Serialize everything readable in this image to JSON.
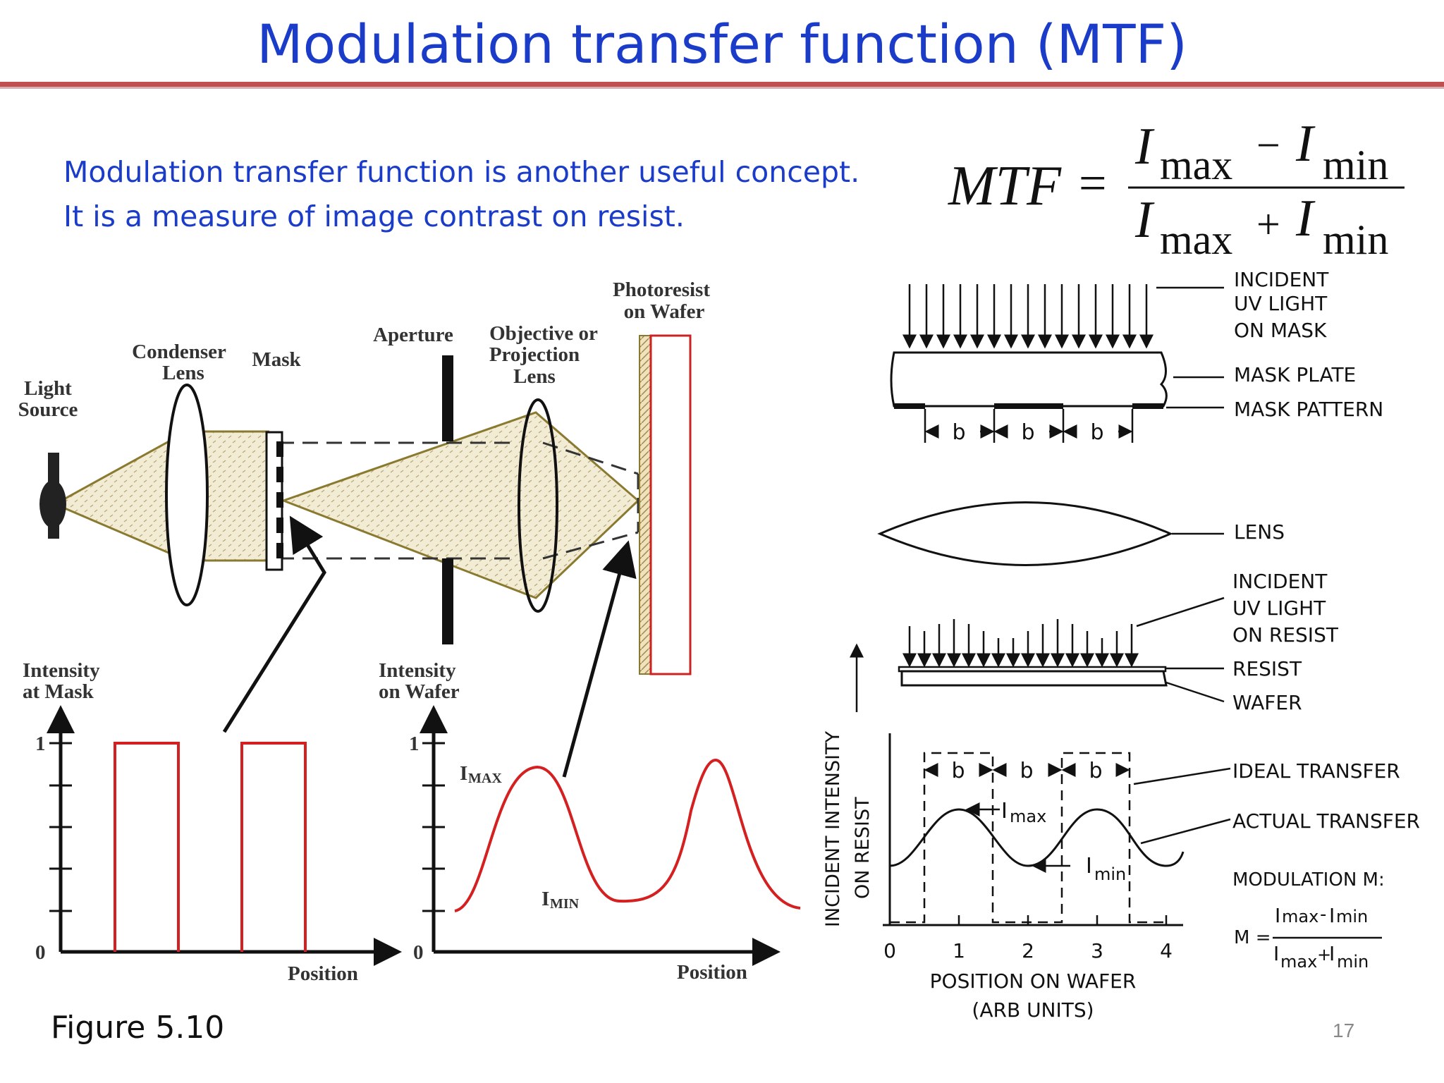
{
  "slide": {
    "title": "Modulation transfer function (MTF)",
    "intro_line1": "Modulation transfer function is another useful concept.",
    "intro_line2": "It is a measure of image contrast on resist.",
    "caption": "Figure 5.10",
    "page_number": "17"
  },
  "formula": {
    "lhs": "MTF",
    "eq": "=",
    "I": "I",
    "max": "max",
    "min": "min",
    "minus": "−",
    "plus": "+"
  },
  "optics_diagram": {
    "light_source_1": "Light",
    "light_source_2": "Source",
    "condenser_1": "Condenser",
    "condenser_2": "Lens",
    "mask": "Mask",
    "aperture": "Aperture",
    "objective_1": "Objective or",
    "objective_2": "Projection",
    "objective_3": "Lens",
    "photoresist_1": "Photoresist",
    "photoresist_2": "on Wafer"
  },
  "plot_mask": {
    "ylabel_1": "Intensity",
    "ylabel_2": "at Mask",
    "xlabel": "Position",
    "tick_1": "1",
    "tick_0": "0"
  },
  "plot_wafer": {
    "ylabel_1": "Intensity",
    "ylabel_2": "on Wafer",
    "xlabel": "Position",
    "tick_1": "1",
    "tick_0": "0",
    "imax_I": "I",
    "imax_sub": "MAX",
    "imin_I": "I",
    "imin_sub": "MIN"
  },
  "schematic": {
    "incident_mask_1": "INCIDENT",
    "incident_mask_2": "UV LIGHT",
    "incident_mask_3": "ON MASK",
    "mask_plate": "MASK PLATE",
    "mask_pattern": "MASK PATTERN",
    "b": "b",
    "lens": "LENS",
    "incident_resist_1": "INCIDENT",
    "incident_resist_2": "UV LIGHT",
    "incident_resist_3": "ON RESIST",
    "resist": "RESIST",
    "wafer": "WAFER",
    "ylabel_1": "INCIDENT INTENSITY",
    "ylabel_2": "ON RESIST",
    "ideal": "IDEAL TRANSFER",
    "actual": "ACTUAL TRANSFER",
    "imax_I": "I",
    "imax_sub": "max",
    "imin_I": "I",
    "imin_sub": "min",
    "xlabel_1": "POSITION ON WAFER",
    "xlabel_2": "(ARB UNITS)",
    "x_ticks": [
      "0",
      "1",
      "2",
      "3",
      "4"
    ],
    "modulation_label": "MODULATION M:",
    "m_eq": "M =",
    "m_num_I1": "I",
    "m_num_s1": "max",
    "m_num_op": "-",
    "m_num_I2": "I",
    "m_num_s2": "min",
    "m_den_I1": "I",
    "m_den_s1": "max",
    "m_den_op": "+",
    "m_den_I2": "I",
    "m_den_s2": "min"
  },
  "colors": {
    "title_blue": "#1a3cc8",
    "rule_red": "#c05050",
    "signal_red": "#d42020",
    "beam_olive": "#8a7a30",
    "beam_fill": "#f3ecd5"
  }
}
